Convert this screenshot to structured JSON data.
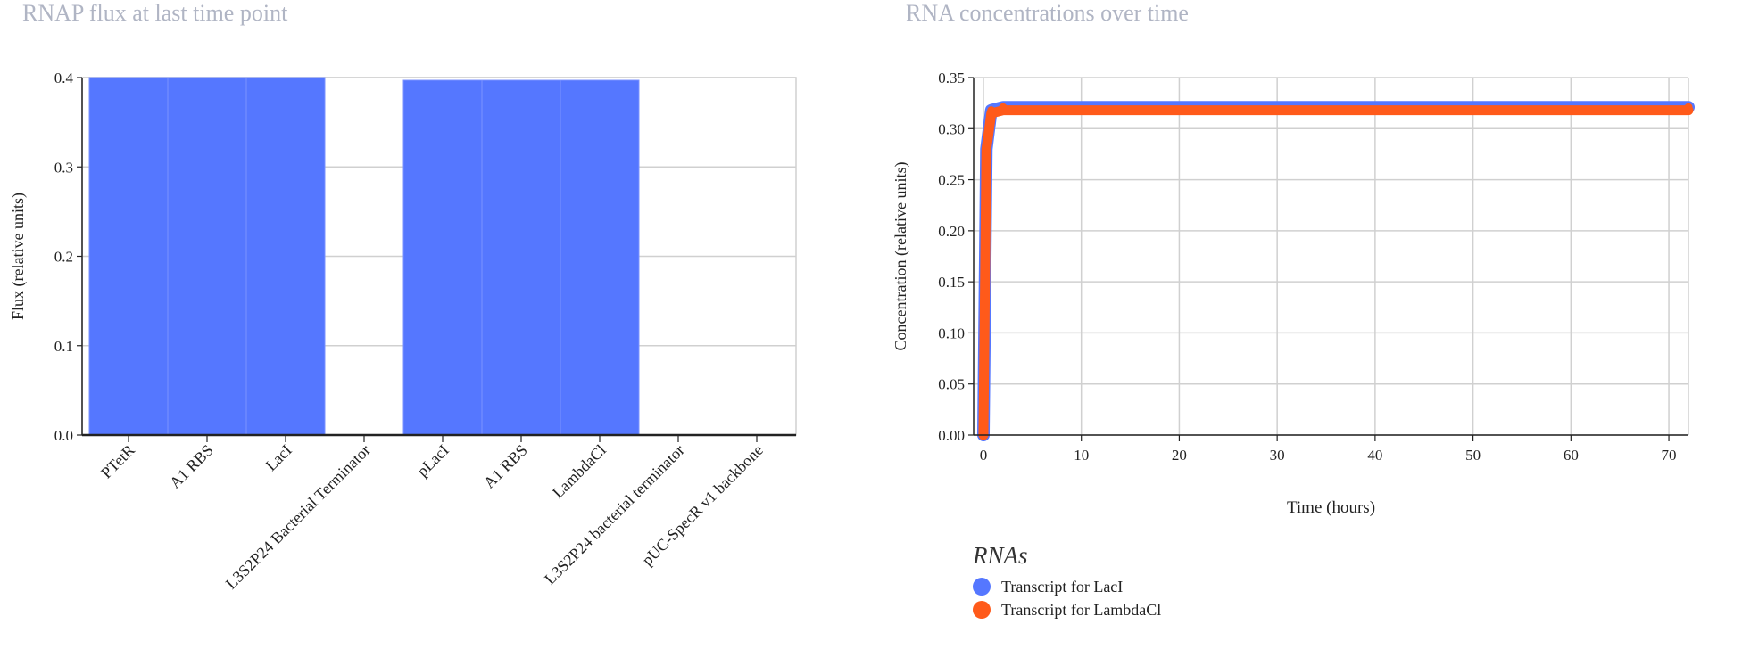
{
  "chart_data": [
    {
      "type": "bar",
      "title": "RNAP flux at last time point",
      "xlabel": "",
      "ylabel": "Flux (relative units)",
      "ylim": [
        0,
        0.4
      ],
      "yticks": [
        "0.0",
        "0.1",
        "0.2",
        "0.3",
        "0.4"
      ],
      "grid": true,
      "categories": [
        "PTetR",
        "A1 RBS",
        "LacI",
        "L3S2P24 Bacterial Terminator",
        "pLacI",
        "A1 RBS",
        "LambdaCl",
        "L3S2P24 bacterial terminator",
        "pUC-SpecR v1 backbone"
      ],
      "values": [
        0.4,
        0.4,
        0.4,
        0,
        0.397,
        0.397,
        0.397,
        0,
        0
      ],
      "color": "#5577ff"
    },
    {
      "type": "line",
      "title": "RNA concentrations over time",
      "xlabel": "Time (hours)",
      "ylabel": "Concentration (relative units)",
      "xlim": [
        -1,
        72
      ],
      "ylim": [
        0,
        0.35
      ],
      "xticks": [
        "0",
        "10",
        "20",
        "30",
        "40",
        "50",
        "60",
        "70"
      ],
      "yticks": [
        "0.00",
        "0.05",
        "0.10",
        "0.15",
        "0.20",
        "0.25",
        "0.30",
        "0.35"
      ],
      "grid": true,
      "legend_title": "RNAs",
      "legend_position": "bottom-left",
      "series": [
        {
          "name": "Transcript for LacI",
          "color": "#5577ff",
          "x": [
            0,
            0.3,
            0.8,
            2,
            72
          ],
          "y": [
            0,
            0.28,
            0.318,
            0.321,
            0.321
          ]
        },
        {
          "name": "Transcript for LambdaCl",
          "color": "#ff5a1a",
          "x": [
            0,
            0.3,
            0.8,
            2,
            72
          ],
          "y": [
            0,
            0.28,
            0.315,
            0.318,
            0.318
          ]
        }
      ]
    }
  ]
}
